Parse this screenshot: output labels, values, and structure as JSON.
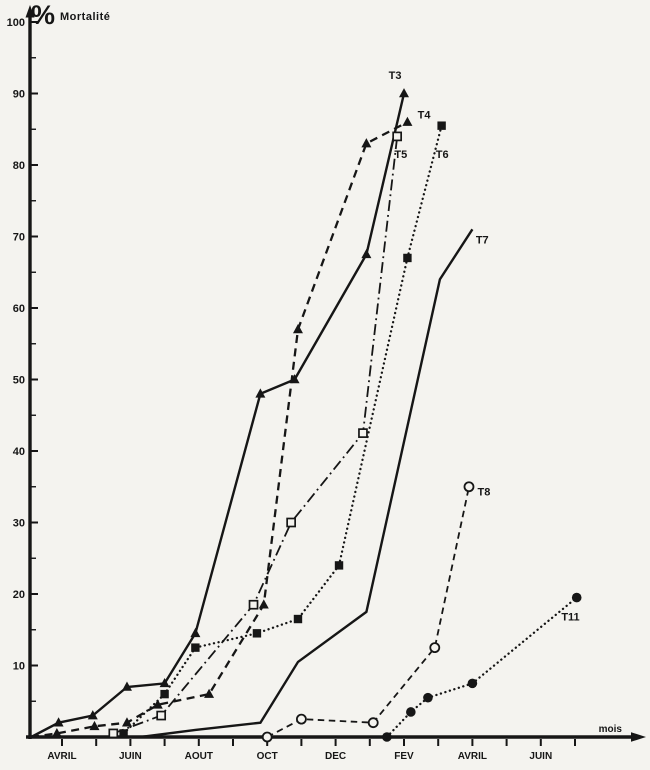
{
  "figure": {
    "percent_symbol": "%",
    "title": "Mortalité"
  },
  "chart_data": {
    "type": "line",
    "title": "% Mortalité",
    "ylabel": "% Mortalité",
    "xlabel": "mois",
    "ylim": [
      0,
      100
    ],
    "y_tick_step": 10,
    "y_minor_tick_step": 5,
    "y_tick_labels": [
      "10",
      "20",
      "30",
      "40",
      "50",
      "60",
      "70",
      "80",
      "90",
      "100"
    ],
    "x_unit": "month index (0 = AVRIL year 1, 14 = JUIN year 2)",
    "x_tick_count": 16,
    "x_tick_labels": [
      {
        "pos": 0,
        "text": "AVRIL"
      },
      {
        "pos": 2,
        "text": "JUIN"
      },
      {
        "pos": 4,
        "text": "AOUT"
      },
      {
        "pos": 6,
        "text": "OCT"
      },
      {
        "pos": 8,
        "text": "DEC"
      },
      {
        "pos": 10,
        "text": "FEV"
      },
      {
        "pos": 12,
        "text": "AVRIL"
      },
      {
        "pos": 14,
        "text": "JUIN"
      }
    ],
    "grid": false,
    "legend_position": "inline-labels-at-line-ends",
    "ink_color": "#161616",
    "background_color": "#f4f3ef",
    "series": [
      {
        "name": "T3",
        "line_style": "solid",
        "marker": "triangle-filled",
        "points": [
          [
            -0.9,
            0
          ],
          [
            -0.1,
            2
          ],
          [
            0.9,
            3
          ],
          [
            1.9,
            7
          ],
          [
            3.0,
            7.5
          ],
          [
            3.9,
            14.5
          ],
          [
            5.8,
            48
          ],
          [
            6.8,
            50
          ],
          [
            8.9,
            67.5
          ],
          [
            10.0,
            90
          ]
        ],
        "label_pos": [
          9.55,
          92.0
        ]
      },
      {
        "name": "T4",
        "line_style": "dashed",
        "marker": "triangle-filled",
        "points": [
          [
            -0.9,
            0
          ],
          [
            -0.15,
            0.5
          ],
          [
            0.95,
            1.5
          ],
          [
            1.9,
            2
          ],
          [
            2.8,
            4.5
          ],
          [
            4.3,
            6
          ],
          [
            5.9,
            18.5
          ],
          [
            6.9,
            57
          ],
          [
            8.9,
            83
          ],
          [
            10.1,
            86
          ]
        ],
        "label_pos": [
          10.4,
          86.5
        ]
      },
      {
        "name": "T5",
        "line_style": "dash-dot",
        "marker": "square-open",
        "points": [
          [
            1.5,
            0.5
          ],
          [
            2.9,
            3
          ],
          [
            5.6,
            18.5
          ],
          [
            6.7,
            30
          ],
          [
            8.8,
            42.5
          ],
          [
            9.8,
            84
          ]
        ],
        "label_pos": [
          9.72,
          81.0
        ]
      },
      {
        "name": "T6",
        "line_style": "dotted",
        "marker": "square-filled",
        "points": [
          [
            1.8,
            0.5
          ],
          [
            3.0,
            6
          ],
          [
            3.9,
            12.5
          ],
          [
            5.7,
            14.5
          ],
          [
            6.9,
            16.5
          ],
          [
            8.1,
            24
          ],
          [
            10.1,
            67
          ],
          [
            11.1,
            85.5
          ]
        ],
        "label_pos": [
          10.93,
          81.0
        ]
      },
      {
        "name": "T7",
        "line_style": "solid",
        "marker": "none",
        "points": [
          [
            2.3,
            0
          ],
          [
            3.9,
            1
          ],
          [
            5.8,
            2
          ],
          [
            6.9,
            10.5
          ],
          [
            8.9,
            17.5
          ],
          [
            11.05,
            64
          ],
          [
            12.0,
            71
          ]
        ],
        "label_pos": [
          12.1,
          69.0
        ]
      },
      {
        "name": "T8",
        "line_style": "dashed-short",
        "marker": "circle-open",
        "points": [
          [
            6.0,
            0
          ],
          [
            7.0,
            2.5
          ],
          [
            9.1,
            2
          ],
          [
            10.9,
            12.5
          ],
          [
            11.9,
            35
          ]
        ],
        "label_pos": [
          12.15,
          33.8
        ]
      },
      {
        "name": "T11",
        "line_style": "dotted",
        "marker": "circle-filled",
        "points": [
          [
            9.5,
            0
          ],
          [
            10.2,
            3.5
          ],
          [
            10.7,
            5.5
          ],
          [
            12.0,
            7.5
          ],
          [
            15.05,
            19.5
          ]
        ],
        "label_pos": [
          14.6,
          16.3
        ]
      }
    ]
  }
}
